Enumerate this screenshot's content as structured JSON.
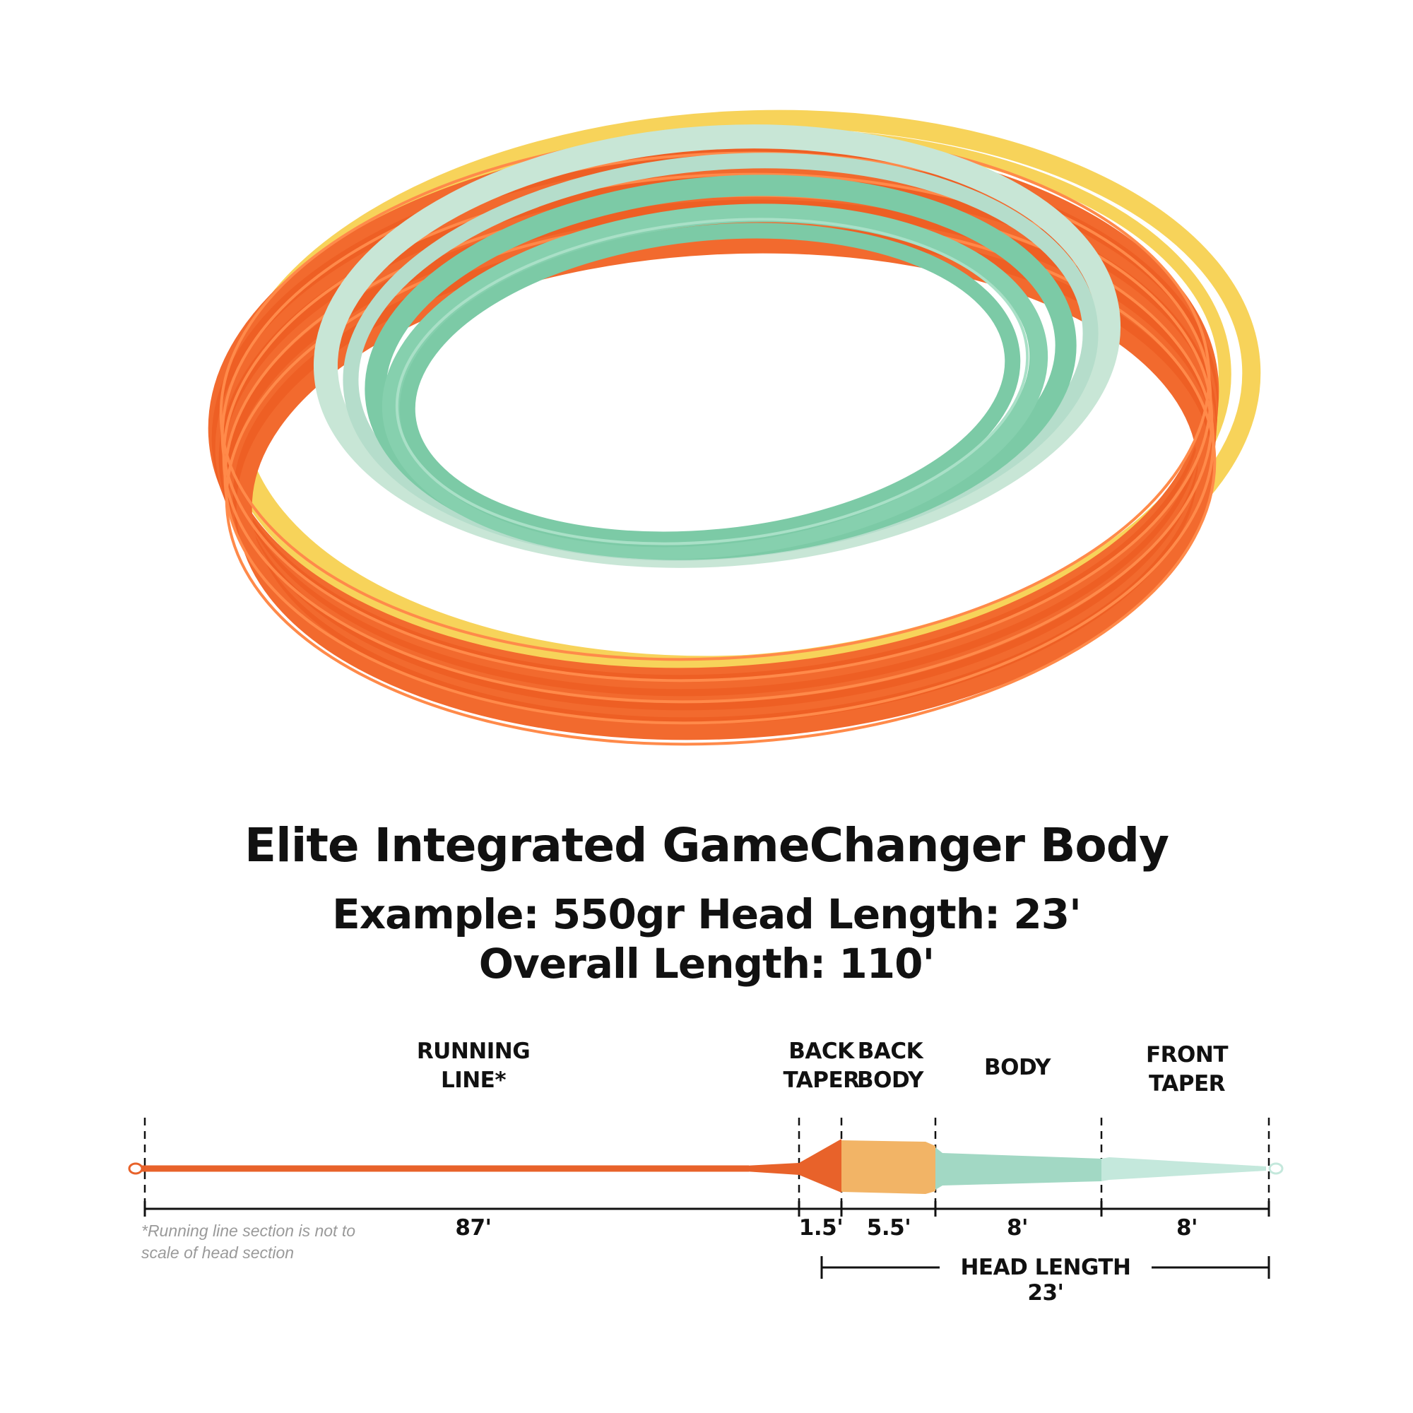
{
  "title": "Elite Integrated GameChanger Body",
  "subtitle_line1": "Example: 550gr Head Length: 23'",
  "subtitle_line2": "Overall Length: 110'",
  "colors": {
    "running_line": "#e8622a",
    "back_taper": "#e8622a",
    "back_body": "#f2b466",
    "body": "#a2d8c4",
    "front_taper": "#c4e8dc",
    "coil_orange": "#f26a2e",
    "coil_yellow": "#f7d35a",
    "coil_green": "#7ccaa6",
    "coil_pale": "#c8e6d6"
  },
  "sections": [
    {
      "name_line1": "RUNNING",
      "name_line2": "LINE*",
      "length_label": "87'",
      "length_ft": 87
    },
    {
      "name_line1": "BACK",
      "name_line2": "TAPER",
      "length_label": "1.5'",
      "length_ft": 1.5
    },
    {
      "name_line1": "BACK",
      "name_line2": "BODY",
      "length_label": "5.5'",
      "length_ft": 5.5
    },
    {
      "name_line1": "BODY",
      "name_line2": "",
      "length_label": "8'",
      "length_ft": 8
    },
    {
      "name_line1": "FRONT",
      "name_line2": "TAPER",
      "length_label": "8'",
      "length_ft": 8
    }
  ],
  "head_length_label": "HEAD LENGTH 23'",
  "footnote_line1": "*Running line section is not to",
  "footnote_line2": "scale of head section"
}
